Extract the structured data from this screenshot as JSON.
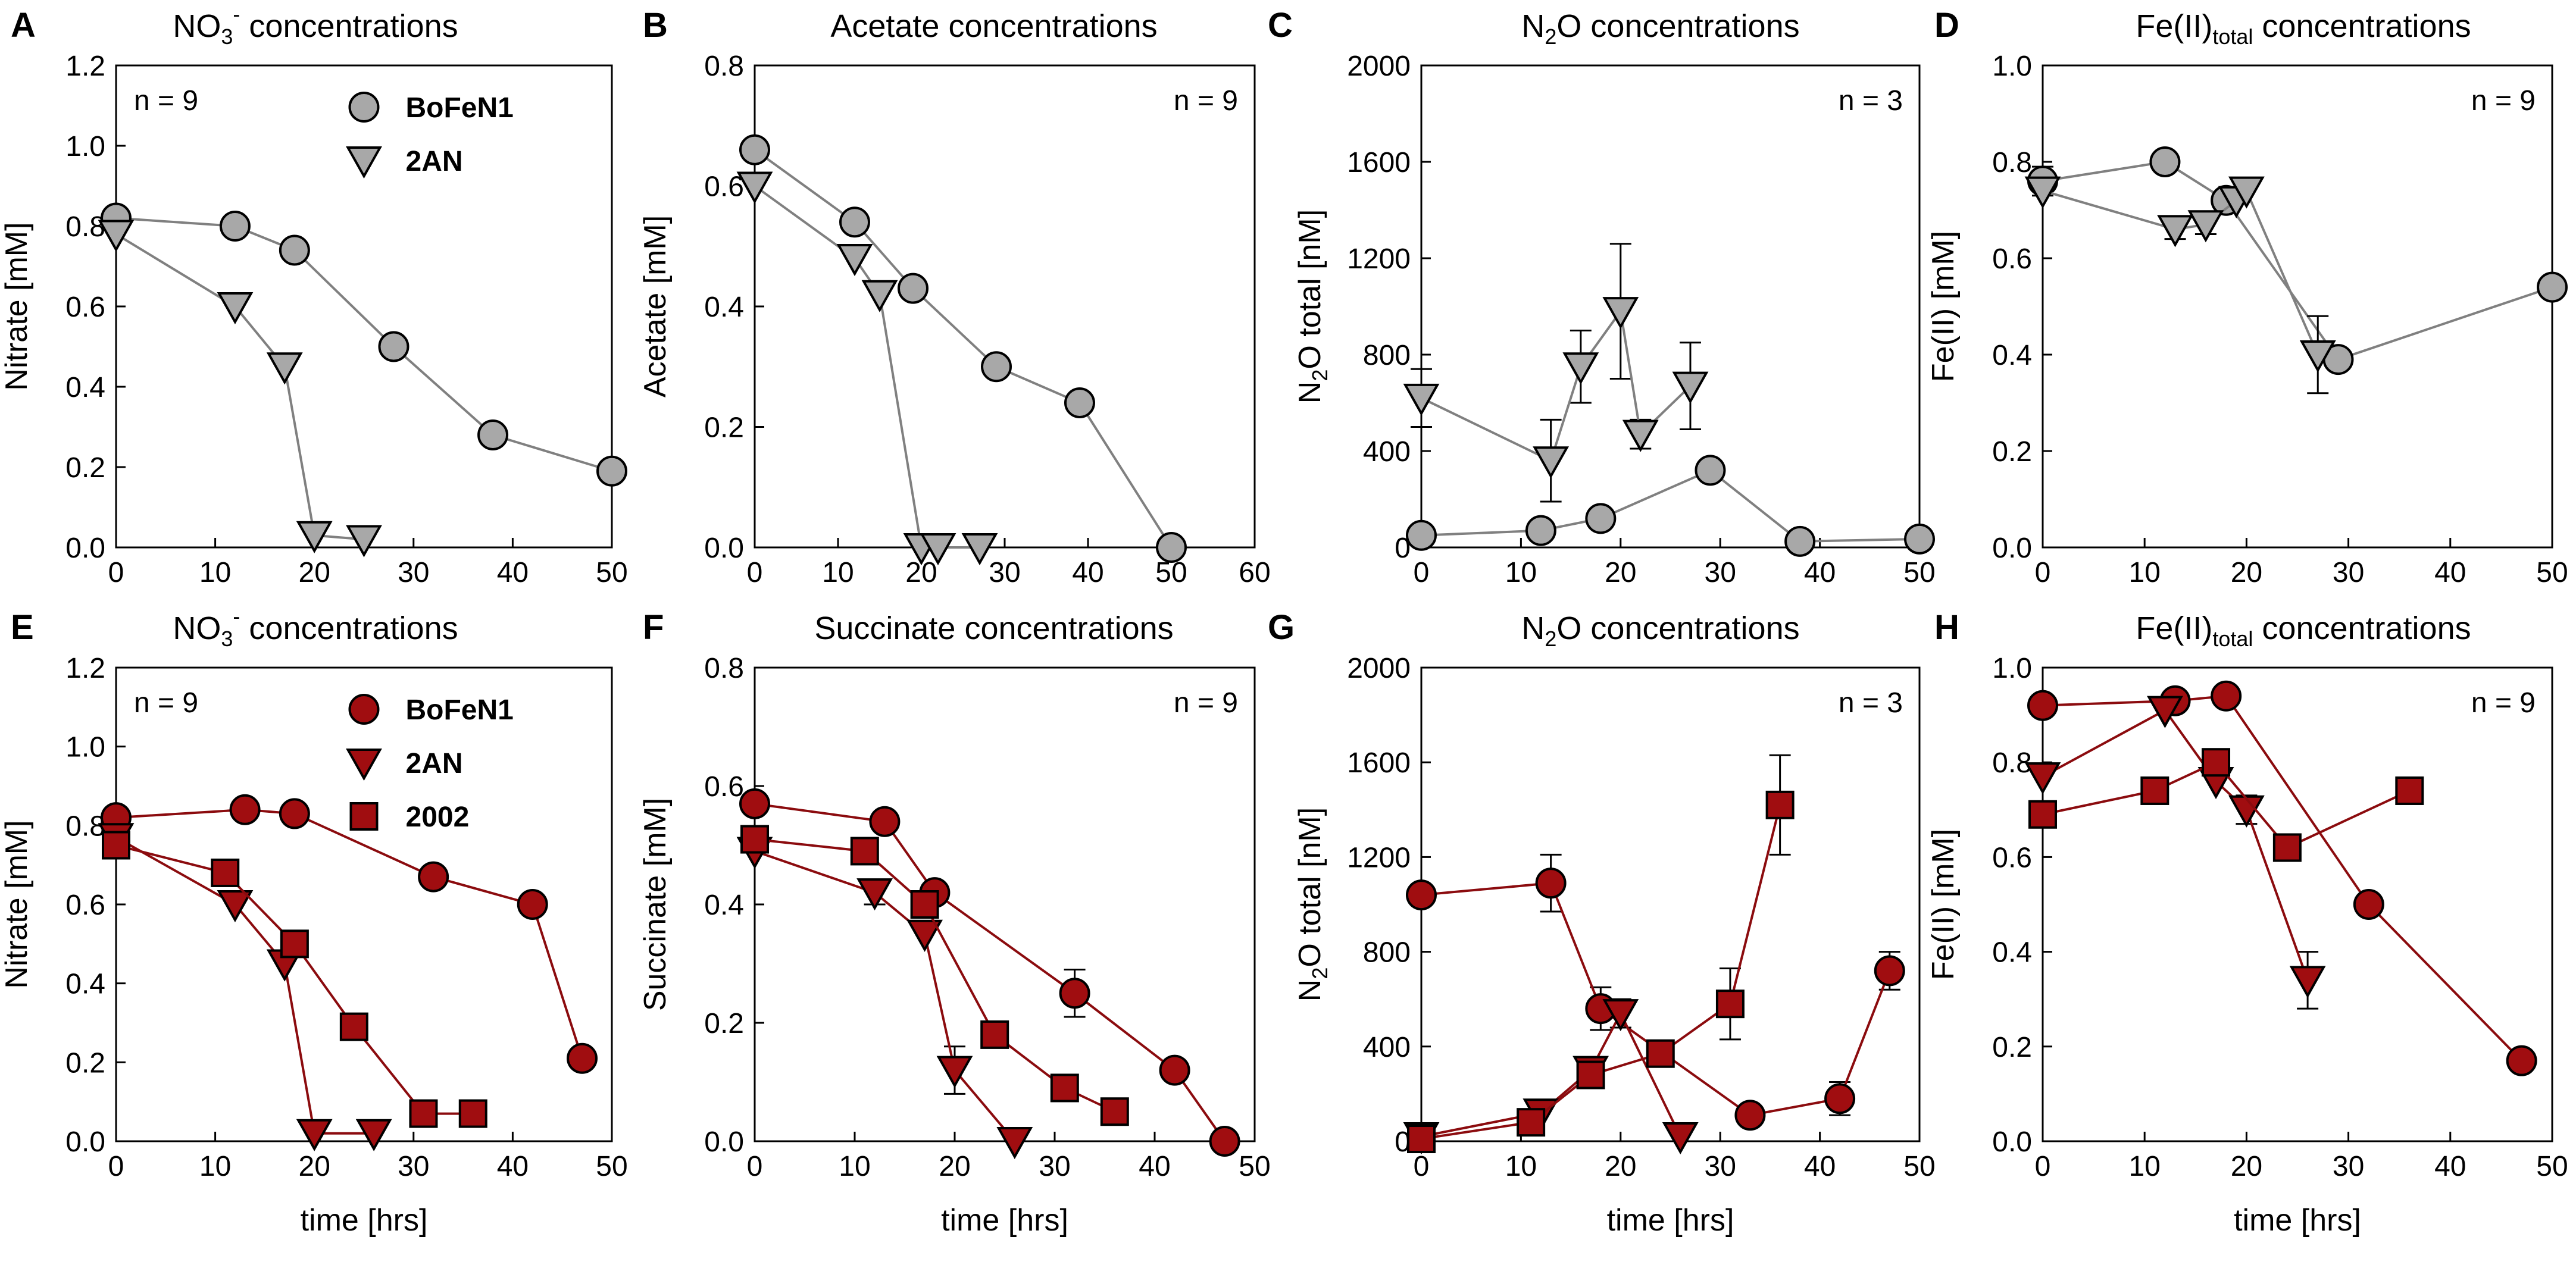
{
  "colors": {
    "grey_fill": "#a8a8a8",
    "grey_line": "#808080",
    "red_fill": "#a00d10",
    "red_line": "#8b0b0e",
    "marker_stroke": "#000000"
  },
  "chart_data": [
    {
      "type": "line",
      "letter": "A",
      "title": "NO3- concentrations",
      "title_main": "NO",
      "title_sub": "3",
      "title_sup": "-",
      "title_rest": " concentrations",
      "xlabel": "",
      "ylabel": "Nitrate [mM]",
      "xlim": [
        0,
        50
      ],
      "ylim": [
        0,
        1.2
      ],
      "xticks": [
        "0",
        "10",
        "20",
        "30",
        "40",
        "50"
      ],
      "yticks": [
        "0.0",
        "0.2",
        "0.4",
        "0.6",
        "0.8",
        "1.0",
        "1.2"
      ],
      "n_label": "n = 9",
      "n_position": "top-left",
      "legend": [
        "BoFeN1",
        "2AN"
      ],
      "legend_position": "top-right",
      "series": [
        {
          "name": "BoFeN1",
          "marker": "circle",
          "color": "grey",
          "x": [
            0,
            12,
            18,
            28,
            38,
            50
          ],
          "y": [
            0.82,
            0.8,
            0.74,
            0.5,
            0.28,
            0.19
          ],
          "err": []
        },
        {
          "name": "2AN",
          "marker": "triangle",
          "color": "grey",
          "x": [
            0,
            12,
            17,
            20,
            25
          ],
          "y": [
            0.78,
            0.6,
            0.45,
            0.03,
            0.02
          ],
          "err": []
        }
      ]
    },
    {
      "type": "line",
      "letter": "B",
      "title": "Acetate concentrations",
      "title_main": "Acetate concentrations",
      "xlabel": "",
      "ylabel": "Acetate [mM]",
      "xlim": [
        0,
        60
      ],
      "ylim": [
        0,
        0.8
      ],
      "xticks": [
        "0",
        "10",
        "20",
        "30",
        "40",
        "50",
        "60"
      ],
      "yticks": [
        "0.0",
        "0.2",
        "0.4",
        "0.6",
        "0.8"
      ],
      "n_label": "n = 9",
      "n_position": "top-right",
      "series": [
        {
          "name": "BoFeN1",
          "marker": "circle",
          "color": "grey",
          "x": [
            0,
            12,
            19,
            29,
            39,
            50
          ],
          "y": [
            0.66,
            0.54,
            0.43,
            0.3,
            0.24,
            0.0
          ],
          "err": []
        },
        {
          "name": "2AN",
          "marker": "triangle",
          "color": "grey",
          "x": [
            0,
            12,
            15,
            20,
            22,
            27
          ],
          "y": [
            0.6,
            0.48,
            0.42,
            0.0,
            0.0,
            0.0
          ],
          "err": []
        }
      ]
    },
    {
      "type": "line",
      "letter": "C",
      "title": "N2O concentrations",
      "title_main": "N",
      "title_sub": "2",
      "title_rest": "O concentrations",
      "xlabel": "",
      "ylabel": "N2O total [nM]",
      "ylabel_main": "N",
      "ylabel_sub": "2",
      "ylabel_rest": "O total [nM]",
      "xlim": [
        0,
        50
      ],
      "ylim": [
        0,
        2000
      ],
      "xticks": [
        "0",
        "10",
        "20",
        "30",
        "40",
        "50"
      ],
      "yticks": [
        "0",
        "400",
        "800",
        "1200",
        "1600",
        "2000"
      ],
      "n_label": "n = 3",
      "n_position": "top-right",
      "series": [
        {
          "name": "BoFeN1",
          "marker": "circle",
          "color": "grey",
          "x": [
            0,
            12,
            18,
            29,
            38,
            50
          ],
          "y": [
            50,
            70,
            120,
            320,
            25,
            35
          ],
          "err": []
        },
        {
          "name": "2AN",
          "marker": "triangle",
          "color": "grey",
          "x": [
            0,
            13,
            16,
            20,
            22,
            27
          ],
          "y": [
            620,
            360,
            750,
            980,
            470,
            670
          ],
          "err": [
            120,
            170,
            150,
            280,
            60,
            180
          ]
        }
      ]
    },
    {
      "type": "line",
      "letter": "D",
      "title": "Fe(II)total concentrations",
      "title_main": "Fe(II)",
      "title_sub": "total",
      "title_rest": " concentrations",
      "xlabel": "",
      "ylabel": "Fe(II) [mM]",
      "xlim": [
        0,
        50
      ],
      "ylim": [
        0,
        1.0
      ],
      "xticks": [
        "0",
        "10",
        "20",
        "30",
        "40",
        "50"
      ],
      "yticks": [
        "0.0",
        "0.2",
        "0.4",
        "0.6",
        "0.8",
        "1.0"
      ],
      "n_label": "n = 9",
      "n_position": "top-right",
      "series": [
        {
          "name": "BoFeN1",
          "marker": "circle",
          "color": "grey",
          "x": [
            0,
            12,
            18,
            29,
            50
          ],
          "y": [
            0.76,
            0.8,
            0.72,
            0.39,
            0.54
          ],
          "err": [
            0.03,
            0,
            0.02,
            0,
            0
          ]
        },
        {
          "name": "2AN",
          "marker": "triangle",
          "color": "grey",
          "x": [
            0,
            13,
            16,
            19,
            20,
            27
          ],
          "y": [
            0.74,
            0.66,
            0.67,
            0.72,
            0.74,
            0.4
          ],
          "err": [
            0,
            0.02,
            0.02,
            0,
            0,
            0.08
          ]
        }
      ]
    },
    {
      "type": "line",
      "letter": "E",
      "title": "NO3- concentrations",
      "title_main": "NO",
      "title_sub": "3",
      "title_sup": "-",
      "title_rest": " concentrations",
      "xlabel": "time [hrs]",
      "ylabel": "Nitrate [mM]",
      "xlim": [
        0,
        50
      ],
      "ylim": [
        0,
        1.2
      ],
      "xticks": [
        "0",
        "10",
        "20",
        "30",
        "40",
        "50"
      ],
      "yticks": [
        "0.0",
        "0.2",
        "0.4",
        "0.6",
        "0.8",
        "1.0",
        "1.2"
      ],
      "n_label": "n = 9",
      "n_position": "top-left",
      "legend": [
        "BoFeN1",
        "2AN",
        "2002"
      ],
      "legend_position": "top-right",
      "series": [
        {
          "name": "BoFeN1",
          "marker": "circle",
          "color": "red",
          "x": [
            0,
            13,
            18,
            32,
            42,
            47
          ],
          "y": [
            0.82,
            0.84,
            0.83,
            0.67,
            0.6,
            0.21
          ],
          "err": []
        },
        {
          "name": "2AN",
          "marker": "triangle",
          "color": "red",
          "x": [
            0,
            12,
            17,
            20,
            26
          ],
          "y": [
            0.77,
            0.6,
            0.45,
            0.02,
            0.02
          ],
          "err": []
        },
        {
          "name": "2002",
          "marker": "square",
          "color": "red",
          "x": [
            0,
            11,
            18,
            24,
            31,
            36
          ],
          "y": [
            0.75,
            0.68,
            0.5,
            0.29,
            0.07,
            0.07
          ],
          "err": []
        }
      ]
    },
    {
      "type": "line",
      "letter": "F",
      "title": "Succinate concentrations",
      "title_main": "Succinate concentrations",
      "xlabel": "time [hrs]",
      "ylabel": "Succinate [mM]",
      "xlim": [
        0,
        50
      ],
      "ylim": [
        0,
        0.8
      ],
      "xticks": [
        "0",
        "10",
        "20",
        "30",
        "40",
        "50"
      ],
      "yticks": [
        "0.0",
        "0.2",
        "0.4",
        "0.6",
        "0.8"
      ],
      "n_label": "n = 9",
      "n_position": "top-right",
      "series": [
        {
          "name": "BoFeN1",
          "marker": "circle",
          "color": "red",
          "x": [
            0,
            13,
            18,
            32,
            42,
            47
          ],
          "y": [
            0.57,
            0.54,
            0.42,
            0.25,
            0.12,
            0.0
          ],
          "err": [
            0,
            0,
            0,
            0.04,
            0,
            0
          ]
        },
        {
          "name": "2AN",
          "marker": "triangle",
          "color": "red",
          "x": [
            0,
            12,
            17,
            20,
            26
          ],
          "y": [
            0.49,
            0.42,
            0.35,
            0.12,
            0.0
          ],
          "err": [
            0,
            0.02,
            0,
            0.04,
            0
          ]
        },
        {
          "name": "2002",
          "marker": "square",
          "color": "red",
          "x": [
            0,
            11,
            17,
            24,
            31,
            36
          ],
          "y": [
            0.51,
            0.49,
            0.4,
            0.18,
            0.09,
            0.05
          ],
          "err": []
        }
      ]
    },
    {
      "type": "line",
      "letter": "G",
      "title": "N2O concentrations",
      "title_main": "N",
      "title_sub": "2",
      "title_rest": "O concentrations",
      "xlabel": "time [hrs]",
      "ylabel": "N2O total [nM]",
      "ylabel_main": "N",
      "ylabel_sub": "2",
      "ylabel_rest": "O total [nM]",
      "xlim": [
        0,
        50
      ],
      "ylim": [
        0,
        2000
      ],
      "xticks": [
        "0",
        "10",
        "20",
        "30",
        "40",
        "50"
      ],
      "yticks": [
        "0",
        "400",
        "800",
        "1200",
        "1600",
        "2000"
      ],
      "n_label": "n = 3",
      "n_position": "top-right",
      "series": [
        {
          "name": "BoFeN1",
          "marker": "circle",
          "color": "red",
          "x": [
            0,
            13,
            18,
            33,
            42,
            47
          ],
          "y": [
            1040,
            1090,
            560,
            110,
            180,
            720
          ],
          "err": [
            0,
            120,
            90,
            0,
            70,
            80
          ]
        },
        {
          "name": "2AN",
          "marker": "triangle",
          "color": "red",
          "x": [
            0,
            12,
            17,
            20,
            26
          ],
          "y": [
            20,
            120,
            300,
            540,
            20
          ],
          "err": [
            0,
            0,
            0,
            60,
            0
          ]
        },
        {
          "name": "2002",
          "marker": "square",
          "color": "red",
          "x": [
            0,
            11,
            17,
            24,
            31,
            36
          ],
          "y": [
            10,
            80,
            280,
            370,
            580,
            1420
          ],
          "err": [
            0,
            0,
            0,
            0,
            150,
            210
          ]
        }
      ]
    },
    {
      "type": "line",
      "letter": "H",
      "title": "Fe(II)total concentrations",
      "title_main": "Fe(II)",
      "title_sub": "total",
      "title_rest": " concentrations",
      "xlabel": "time [hrs]",
      "ylabel": "Fe(II) [mM]",
      "xlim": [
        0,
        50
      ],
      "ylim": [
        0,
        1.0
      ],
      "xticks": [
        "0",
        "10",
        "20",
        "30",
        "40",
        "50"
      ],
      "yticks": [
        "0.0",
        "0.2",
        "0.4",
        "0.6",
        "0.8",
        "1.0"
      ],
      "n_label": "n = 9",
      "n_position": "top-right",
      "series": [
        {
          "name": "BoFeN1",
          "marker": "circle",
          "color": "red",
          "x": [
            0,
            13,
            18,
            32,
            47
          ],
          "y": [
            0.92,
            0.93,
            0.94,
            0.5,
            0.17
          ],
          "err": []
        },
        {
          "name": "2AN",
          "marker": "triangle",
          "color": "red",
          "x": [
            0,
            12,
            17,
            20,
            26
          ],
          "y": [
            0.77,
            0.91,
            0.76,
            0.7,
            0.34
          ],
          "err": [
            0,
            0,
            0,
            0.03,
            0.06
          ]
        },
        {
          "name": "2002",
          "marker": "square",
          "color": "red",
          "x": [
            0,
            11,
            17,
            24,
            36
          ],
          "y": [
            0.69,
            0.74,
            0.8,
            0.62,
            0.74
          ],
          "err": []
        }
      ]
    }
  ]
}
